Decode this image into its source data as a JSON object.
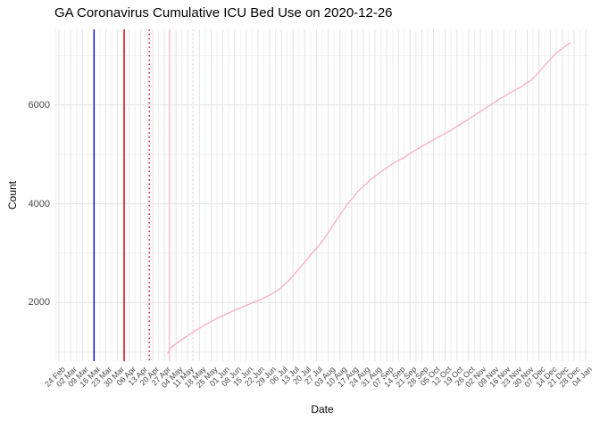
{
  "title": "GA Coronavirus Cumulative ICU Bed Use on 2020-12-26",
  "x_axis_title": "Date",
  "y_axis_title": "Count",
  "chart_data": {
    "type": "line",
    "title": "GA Coronavirus Cumulative ICU Bed Use on 2020-12-26",
    "xlabel": "Date",
    "ylabel": "Count",
    "grid": {
      "shown": true,
      "major_color": "#e3e3e3",
      "minor_color": "#f0f0f0"
    },
    "x_tick_labels": [
      "24 Feb",
      "02 Mar",
      "09 Mar",
      "16 Mar",
      "23 Mar",
      "30 Mar",
      "06 Apr",
      "13 Apr",
      "20 Apr",
      "27 Apr",
      "04 May",
      "11 May",
      "18 May",
      "25 May",
      "01 Jun",
      "08 Jun",
      "15 Jun",
      "22 Jun",
      "29 Jun",
      "06 Jul",
      "13 Jul",
      "20 Jul",
      "27 Jul",
      "03 Aug",
      "10 Aug",
      "17 Aug",
      "24 Aug",
      "31 Aug",
      "07 Sep",
      "14 Sep",
      "21 Sep",
      "28 Sep",
      "05 Oct",
      "12 Oct",
      "19 Oct",
      "26 Oct",
      "02 Nov",
      "09 Nov",
      "16 Nov",
      "23 Nov",
      "30 Nov",
      "07 Dec",
      "14 Dec",
      "21 Dec",
      "28 Dec",
      "04 Jan"
    ],
    "x_tick_interval_days": 7,
    "x_range_days": [
      0,
      315
    ],
    "y_major_ticks": [
      2000,
      4000,
      6000
    ],
    "y_minor_ticks": [
      1000,
      3000,
      5000,
      7000
    ],
    "ylim": [
      810,
      7530
    ],
    "annotations": {
      "vlines": [
        {
          "name": "blue-solid-vline",
          "date": "2020-03-16",
          "day": 21,
          "color": "#0000cd",
          "style": "solid"
        },
        {
          "name": "red-solid-vline",
          "date": "2020-04-03",
          "day": 39,
          "color": "#cc0000",
          "style": "solid"
        },
        {
          "name": "red-dotted-vline",
          "date": "2020-04-18",
          "day": 54,
          "color": "#cc0000",
          "style": "dotted"
        },
        {
          "name": "pink-solid-vline",
          "date": "2020-04-30",
          "day": 66,
          "color": "#ffc3cc",
          "style": "solid"
        },
        {
          "name": "pink-dotted-vline",
          "date": "2020-05-14",
          "day": 80,
          "color": "#ffd4db",
          "style": "dotted"
        }
      ]
    },
    "series": [
      {
        "name": "cumulative-icu-bed-use",
        "color": "#fbaec1",
        "points": [
          {
            "date": "2020-04-29",
            "day": 65,
            "value": 970
          },
          {
            "date": "2020-05-01",
            "day": 67,
            "value": 1090
          },
          {
            "date": "2020-05-08",
            "day": 74,
            "value": 1265
          },
          {
            "date": "2020-05-15",
            "day": 81,
            "value": 1420
          },
          {
            "date": "2020-05-22",
            "day": 88,
            "value": 1560
          },
          {
            "date": "2020-05-29",
            "day": 95,
            "value": 1690
          },
          {
            "date": "2020-06-05",
            "day": 102,
            "value": 1800
          },
          {
            "date": "2020-06-12",
            "day": 109,
            "value": 1900
          },
          {
            "date": "2020-06-19",
            "day": 116,
            "value": 2000
          },
          {
            "date": "2020-06-26",
            "day": 123,
            "value": 2100
          },
          {
            "date": "2020-07-03",
            "day": 130,
            "value": 2230
          },
          {
            "date": "2020-07-10",
            "day": 137,
            "value": 2430
          },
          {
            "date": "2020-07-17",
            "day": 144,
            "value": 2700
          },
          {
            "date": "2020-07-24",
            "day": 151,
            "value": 2980
          },
          {
            "date": "2020-07-31",
            "day": 158,
            "value": 3260
          },
          {
            "date": "2020-08-07",
            "day": 165,
            "value": 3620
          },
          {
            "date": "2020-08-14",
            "day": 172,
            "value": 3970
          },
          {
            "date": "2020-08-21",
            "day": 179,
            "value": 4260
          },
          {
            "date": "2020-08-28",
            "day": 186,
            "value": 4480
          },
          {
            "date": "2020-09-04",
            "day": 193,
            "value": 4660
          },
          {
            "date": "2020-09-11",
            "day": 200,
            "value": 4820
          },
          {
            "date": "2020-09-18",
            "day": 207,
            "value": 4950
          },
          {
            "date": "2020-09-25",
            "day": 214,
            "value": 5100
          },
          {
            "date": "2020-10-02",
            "day": 221,
            "value": 5240
          },
          {
            "date": "2020-10-09",
            "day": 228,
            "value": 5370
          },
          {
            "date": "2020-10-16",
            "day": 235,
            "value": 5500
          },
          {
            "date": "2020-10-23",
            "day": 242,
            "value": 5650
          },
          {
            "date": "2020-10-30",
            "day": 249,
            "value": 5800
          },
          {
            "date": "2020-11-06",
            "day": 256,
            "value": 5960
          },
          {
            "date": "2020-11-13",
            "day": 263,
            "value": 6110
          },
          {
            "date": "2020-11-20",
            "day": 270,
            "value": 6250
          },
          {
            "date": "2020-11-27",
            "day": 277,
            "value": 6380
          },
          {
            "date": "2020-12-04",
            "day": 284,
            "value": 6550
          },
          {
            "date": "2020-12-11",
            "day": 291,
            "value": 6820
          },
          {
            "date": "2020-12-18",
            "day": 298,
            "value": 7070
          },
          {
            "date": "2020-12-26",
            "day": 306,
            "value": 7270
          }
        ]
      }
    ]
  }
}
